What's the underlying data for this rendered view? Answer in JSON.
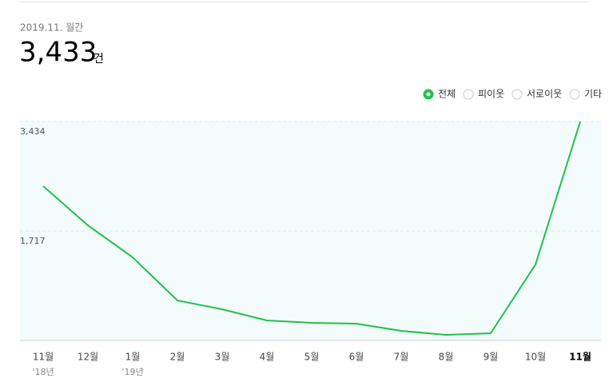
{
  "chart_data": {
    "type": "line",
    "period": "2019.11. 월간",
    "total": "3,433",
    "unit": "건",
    "legend": [
      {
        "label": "전체",
        "selected": true
      },
      {
        "label": "피이웃",
        "selected": false
      },
      {
        "label": "서로이웃",
        "selected": false
      },
      {
        "label": "기타",
        "selected": false
      }
    ],
    "categories": [
      "11월",
      "12월",
      "1월",
      "2월",
      "3월",
      "4월",
      "5월",
      "6월",
      "7월",
      "8월",
      "9월",
      "10월",
      "11월"
    ],
    "sublabels": [
      "'18년",
      null,
      "'19년",
      null,
      null,
      null,
      null,
      null,
      null,
      null,
      null,
      null,
      null
    ],
    "values": [
      2420,
      1805,
      1303,
      627,
      489,
      313,
      276,
      263,
      150,
      88,
      113,
      1190,
      3433
    ],
    "color": "#1fc24a",
    "ylim": [
      0,
      3434
    ],
    "yticks": [
      {
        "value": 1717,
        "label": "1,717"
      },
      {
        "value": 3434,
        "label": "3,434"
      }
    ],
    "grid": true
  }
}
